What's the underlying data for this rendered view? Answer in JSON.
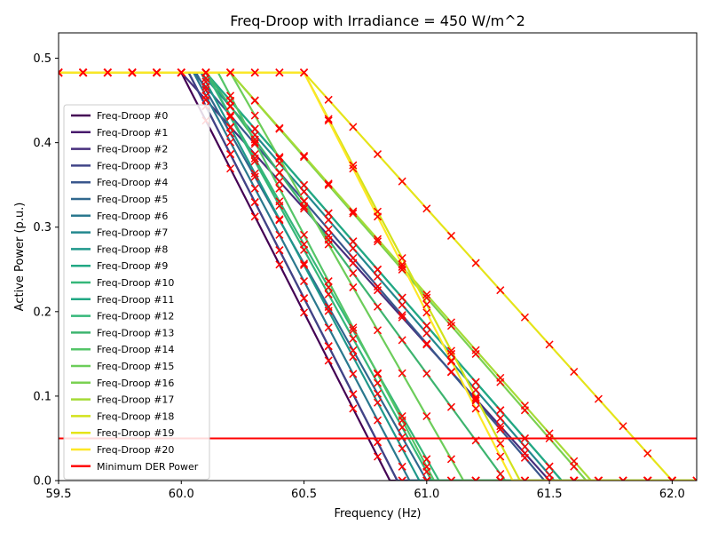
{
  "chart_data": {
    "type": "line",
    "title": "Freq-Droop with Irradiance = 450 W/m^2",
    "xlabel": "Frequency (Hz)",
    "ylabel": "Active Power (p.u.)",
    "xlim": [
      59.5,
      62.1
    ],
    "ylim": [
      0.0,
      0.53
    ],
    "xticks": [
      59.5,
      60.0,
      60.5,
      61.0,
      61.5,
      62.0
    ],
    "yticks": [
      0.0,
      0.1,
      0.2,
      0.3,
      0.4,
      0.5
    ],
    "xtick_labels": [
      "59.5",
      "60.0",
      "60.5",
      "61.0",
      "61.5",
      "62.0"
    ],
    "ytick_labels": [
      "0.0",
      "0.1",
      "0.2",
      "0.3",
      "0.4",
      "0.5"
    ],
    "grid": false,
    "legend_position": "left",
    "p_max": 0.483,
    "marker_color": "#ff0000",
    "series": [
      {
        "name": "Freq-Droop #0",
        "color": "#440154",
        "knee": 60.0,
        "zero": 60.85
      },
      {
        "name": "Freq-Droop #1",
        "color": "#481a6c",
        "knee": 60.03,
        "zero": 60.88
      },
      {
        "name": "Freq-Droop #2",
        "color": "#472f7d",
        "knee": 60.0,
        "zero": 61.5
      },
      {
        "name": "Freq-Droop #3",
        "color": "#414487",
        "knee": 60.03,
        "zero": 60.88
      },
      {
        "name": "Freq-Droop #4",
        "color": "#39568c",
        "knee": 60.05,
        "zero": 61.48
      },
      {
        "name": "Freq-Droop #5",
        "color": "#31688e",
        "knee": 60.06,
        "zero": 61.0
      },
      {
        "name": "Freq-Droop #6",
        "color": "#2a788e",
        "knee": 60.05,
        "zero": 60.93
      },
      {
        "name": "Freq-Droop #7",
        "color": "#23888e",
        "knee": 60.08,
        "zero": 61.52
      },
      {
        "name": "Freq-Droop #8",
        "color": "#1f988b",
        "knee": 60.08,
        "zero": 60.97
      },
      {
        "name": "Freq-Droop #9",
        "color": "#22a884",
        "knee": 60.1,
        "zero": 61.55
      },
      {
        "name": "Freq-Droop #10",
        "color": "#35b779",
        "knee": 60.1,
        "zero": 61.02
      },
      {
        "name": "Freq-Droop #11",
        "color": "#22a884",
        "knee": 60.1,
        "zero": 61.55
      },
      {
        "name": "Freq-Droop #12",
        "color": "#35b779",
        "knee": 60.1,
        "zero": 61.05
      },
      {
        "name": "Freq-Droop #13",
        "color": "#3db46f",
        "knee": 60.1,
        "zero": 61.32
      },
      {
        "name": "Freq-Droop #14",
        "color": "#54c568",
        "knee": 60.15,
        "zero": 61.03
      },
      {
        "name": "Freq-Droop #15",
        "color": "#6ccd5a",
        "knee": 60.2,
        "zero": 61.15
      },
      {
        "name": "Freq-Droop #16",
        "color": "#7ad151",
        "knee": 60.2,
        "zero": 61.65
      },
      {
        "name": "Freq-Droop #17",
        "color": "#a5db36",
        "knee": 60.2,
        "zero": 61.67
      },
      {
        "name": "Freq-Droop #18",
        "color": "#d2e21b",
        "knee": 60.5,
        "zero": 61.38
      },
      {
        "name": "Freq-Droop #19",
        "color": "#e5e419",
        "knee": 60.5,
        "zero": 62.0
      },
      {
        "name": "Freq-Droop #20",
        "color": "#fde725",
        "knee": 60.5,
        "zero": 61.35
      }
    ],
    "threshold": {
      "name": "Minimum DER Power",
      "value": 0.05,
      "color": "#ff0000"
    }
  }
}
